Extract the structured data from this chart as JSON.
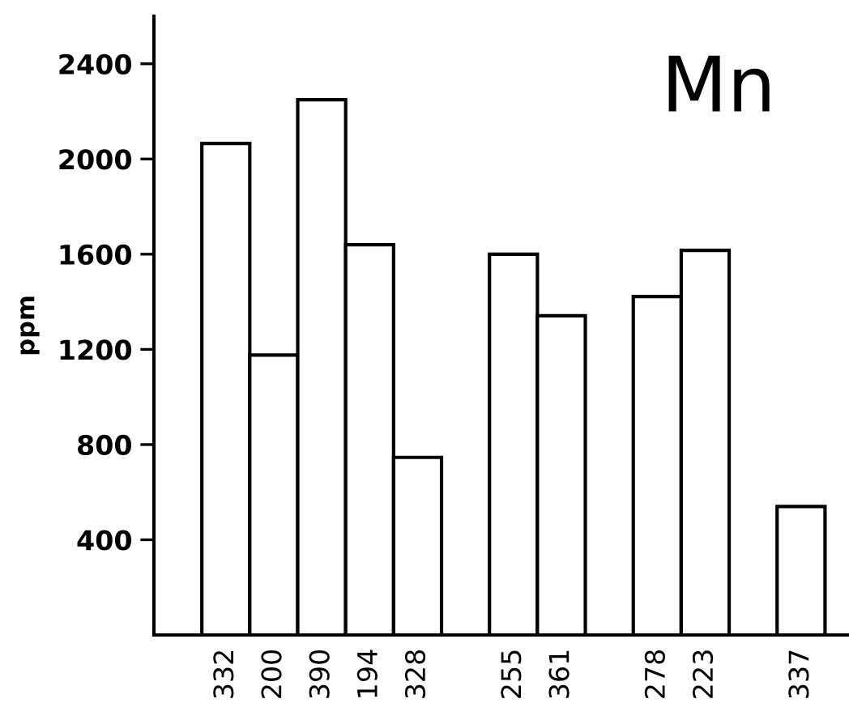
{
  "chart_data": {
    "type": "bar",
    "title": "Mn",
    "ylabel": "ppm",
    "categories": [
      "332",
      "200",
      "390",
      "194",
      "328",
      null,
      "255",
      "361",
      null,
      "278",
      "223",
      null,
      "337"
    ],
    "values": [
      2065,
      1176,
      2249,
      1640,
      746,
      null,
      1600,
      1341,
      null,
      1422,
      1616,
      null,
      540
    ],
    "color": "#ffffff",
    "ylim": [
      0,
      2600
    ],
    "yticks": [
      400,
      800,
      1200,
      1600,
      2000,
      2400
    ],
    "grid": false,
    "legend": false
  }
}
